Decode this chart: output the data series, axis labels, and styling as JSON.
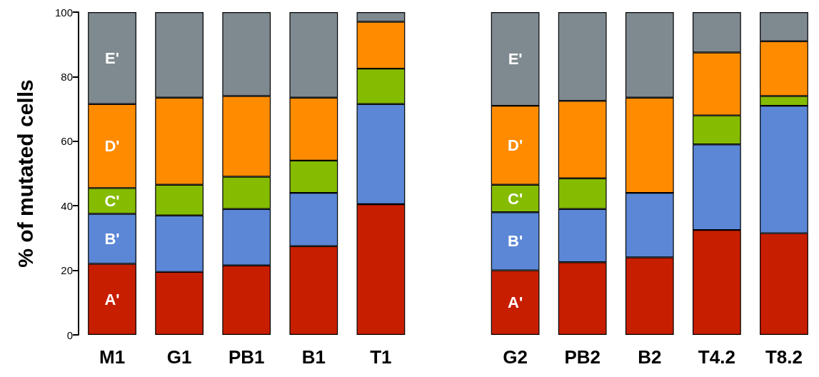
{
  "chart_data": {
    "type": "bar",
    "stacked": true,
    "ylabel": "% of mutated cells",
    "categories": [
      "M1",
      "G1",
      "PB1",
      "B1",
      "T1",
      null,
      "G2",
      "PB2",
      "B2",
      "T4.2",
      "T8.2"
    ],
    "ylim": [
      0,
      100
    ],
    "yticks": [
      0,
      20,
      40,
      60,
      80,
      100
    ],
    "grid": false,
    "legend": false,
    "series": [
      {
        "name": "A'",
        "color": "#c81e00",
        "values": [
          22,
          19.5,
          21.5,
          27.5,
          40.5,
          null,
          20,
          22.5,
          24,
          32.5,
          31.5
        ]
      },
      {
        "name": "B'",
        "color": "#5b87d6",
        "values": [
          15.5,
          17.5,
          17.5,
          16.5,
          31,
          null,
          18,
          16.5,
          20,
          26.5,
          39.5
        ]
      },
      {
        "name": "C'",
        "color": "#85bb00",
        "values": [
          8,
          9.5,
          10,
          10,
          11,
          null,
          8.5,
          9.5,
          0,
          9,
          3
        ]
      },
      {
        "name": "D'",
        "color": "#ff8c00",
        "values": [
          26,
          27,
          25,
          19.5,
          14.5,
          null,
          24.5,
          24,
          29.5,
          19.5,
          17
        ]
      },
      {
        "name": "E'",
        "color": "#7f8a90",
        "values": [
          28.5,
          26.5,
          26,
          26.5,
          3,
          null,
          29,
          27.5,
          26.5,
          12.5,
          9
        ]
      }
    ]
  }
}
